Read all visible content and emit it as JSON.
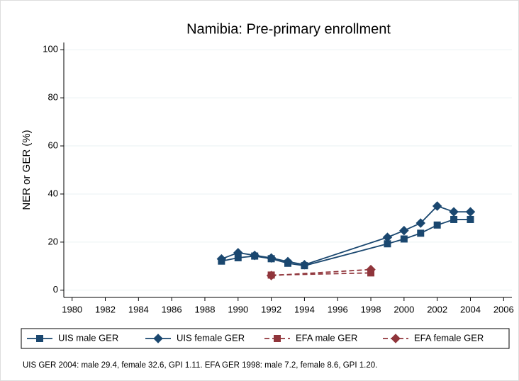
{
  "chart_data": {
    "type": "line",
    "title": "Namibia: Pre-primary enrollment",
    "y_label": "NER or GER (%)",
    "note": "UIS GER 2004: male 29.4, female 32.6, GPI 1.11. EFA GER 1998: male 7.2, female 8.6, GPI 1.20.",
    "xlim": [
      1979.5,
      2006.5
    ],
    "xticks": [
      1980,
      1982,
      1984,
      1986,
      1988,
      1990,
      1992,
      1994,
      1996,
      1998,
      2000,
      2002,
      2004,
      2006
    ],
    "ylim": [
      -3,
      103
    ],
    "yticks": [
      0,
      20,
      40,
      60,
      80,
      100
    ],
    "grid": true,
    "legend": "bottom",
    "series": [
      {
        "name": "UIS male GER",
        "color": "#1a476f",
        "symbol": "square",
        "dash": false,
        "x": [
          1989,
          1990,
          1991,
          1992,
          1993,
          1994,
          1999,
          2000,
          2001,
          2002,
          2003,
          2004
        ],
        "values": [
          12.1,
          13.5,
          14.2,
          13.1,
          11.2,
          10.2,
          19.3,
          21.3,
          23.7,
          27.1,
          29.4,
          29.4
        ]
      },
      {
        "name": "UIS female GER",
        "color": "#1a476f",
        "symbol": "diamond",
        "dash": false,
        "x": [
          1989,
          1990,
          1991,
          1992,
          1993,
          1994,
          1999,
          2000,
          2001,
          2002,
          2003,
          2004
        ],
        "values": [
          13.0,
          15.6,
          14.5,
          13.4,
          11.9,
          10.6,
          22.0,
          24.8,
          27.9,
          35.0,
          32.6,
          32.6
        ]
      },
      {
        "name": "EFA male GER",
        "color": "#90353b",
        "symbol": "square",
        "dash": true,
        "x": [
          1992,
          1998
        ],
        "values": [
          6.3,
          7.2
        ]
      },
      {
        "name": "EFA female GER",
        "color": "#90353b",
        "symbol": "diamond",
        "dash": true,
        "x": [
          1992,
          1998
        ],
        "values": [
          6.1,
          8.6
        ]
      }
    ]
  }
}
